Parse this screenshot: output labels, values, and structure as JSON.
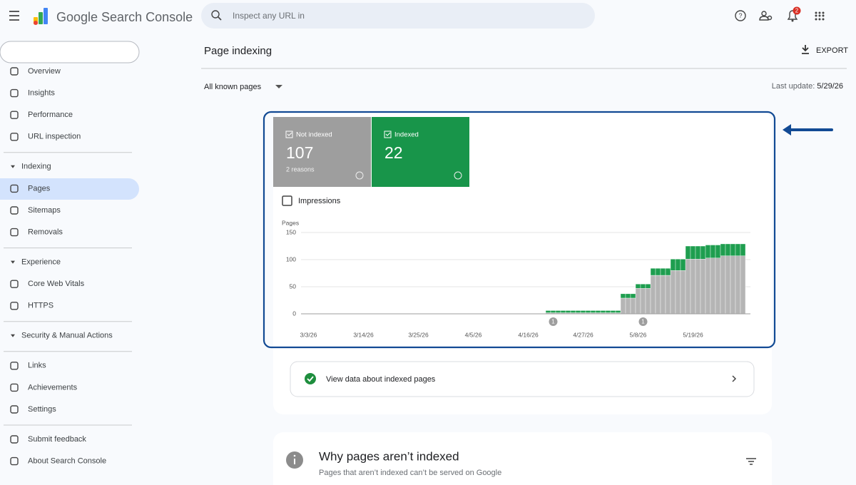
{
  "header": {
    "product": "Google Search Console",
    "search_placeholder": "Inspect any URL in",
    "notifications": 2
  },
  "sidebar": [
    {
      "items": [
        "Overview",
        "Insights",
        "Performance",
        "URL inspection"
      ]
    },
    {
      "heading": "Indexing",
      "items": [
        "Pages",
        "Sitemaps",
        "Removals"
      ]
    },
    {
      "heading": "Experience",
      "items": [
        "Core Web Vitals",
        "HTTPS"
      ]
    },
    {
      "heading": "Security & Manual Actions"
    },
    {
      "items": [
        "Links",
        "Achievements",
        "Settings"
      ]
    },
    {
      "items": [
        "Submit feedback",
        "About Search Console"
      ]
    }
  ],
  "page": {
    "title": "Page indexing",
    "export": "EXPORT",
    "filter": "All known pages",
    "last_update_label": "Last update:",
    "last_update": "5/29/26"
  },
  "summary": {
    "not_indexed": 107,
    "reasons": "2 reasons",
    "indexed": 22
  },
  "impressions": "Impressions",
  "chart_data": {
    "type": "bar",
    "stacked": true,
    "y_label": "Pages",
    "ylim": [
      0,
      150
    ],
    "yticks": [
      0,
      50,
      100,
      150
    ],
    "grid": true,
    "categories": [
      null,
      "3/3/26",
      null,
      null,
      null,
      null,
      null,
      null,
      null,
      null,
      null,
      null,
      "3/14/26",
      null,
      null,
      null,
      null,
      null,
      null,
      null,
      null,
      null,
      null,
      "3/25/26",
      null,
      null,
      null,
      null,
      null,
      null,
      null,
      null,
      null,
      null,
      "4/5/26",
      null,
      null,
      null,
      null,
      null,
      null,
      null,
      null,
      null,
      null,
      "4/16/26",
      null,
      null,
      null,
      null,
      null,
      null,
      null,
      null,
      null,
      null,
      "4/27/26",
      null,
      null,
      null,
      null,
      null,
      null,
      null,
      null,
      null,
      null,
      "5/8/26",
      null,
      null,
      null,
      null,
      null,
      null,
      null,
      null,
      null,
      null,
      "5/19/26",
      null,
      null,
      null,
      null,
      null,
      null,
      null,
      null,
      null,
      null
    ],
    "markers": [
      null,
      null,
      null,
      null,
      null,
      null,
      null,
      null,
      null,
      null,
      null,
      null,
      null,
      null,
      null,
      null,
      null,
      null,
      null,
      null,
      null,
      null,
      null,
      null,
      null,
      null,
      null,
      null,
      null,
      null,
      null,
      null,
      null,
      null,
      null,
      null,
      null,
      null,
      null,
      null,
      null,
      null,
      null,
      null,
      null,
      null,
      null,
      null,
      null,
      null,
      1,
      null,
      null,
      null,
      null,
      null,
      null,
      null,
      null,
      null,
      null,
      null,
      null,
      null,
      null,
      null,
      null,
      null,
      1,
      null,
      null,
      null,
      null,
      null,
      null,
      null,
      null,
      null,
      null,
      null,
      null,
      null,
      null,
      null,
      null,
      null,
      null,
      null,
      null
    ],
    "series": [
      {
        "name": "Not indexed",
        "color": "#b5b5b5",
        "values": [
          0,
          0,
          0,
          0,
          0,
          0,
          0,
          0,
          0,
          0,
          0,
          0,
          0,
          0,
          0,
          0,
          0,
          0,
          0,
          0,
          0,
          0,
          0,
          0,
          0,
          0,
          0,
          0,
          0,
          0,
          0,
          0,
          0,
          0,
          0,
          0,
          0,
          0,
          0,
          0,
          0,
          0,
          0,
          0,
          0,
          0,
          0,
          0,
          0,
          2,
          2,
          2,
          2,
          2,
          2,
          2,
          2,
          2,
          2,
          2,
          2,
          2,
          2,
          2,
          29,
          29,
          29,
          47,
          47,
          47,
          71,
          71,
          71,
          71,
          80,
          80,
          80,
          101,
          101,
          101,
          101,
          103,
          103,
          103,
          107,
          107,
          107,
          107,
          107
        ]
      },
      {
        "name": "Indexed",
        "color": "#1e9e4f",
        "values": [
          0,
          0,
          0,
          0,
          0,
          0,
          0,
          0,
          0,
          0,
          0,
          0,
          0,
          0,
          0,
          0,
          0,
          0,
          0,
          0,
          0,
          0,
          0,
          0,
          0,
          0,
          0,
          0,
          0,
          0,
          0,
          0,
          0,
          0,
          0,
          0,
          0,
          0,
          0,
          0,
          0,
          0,
          0,
          0,
          0,
          0,
          0,
          0,
          0,
          4,
          4,
          4,
          4,
          4,
          4,
          4,
          4,
          4,
          4,
          4,
          4,
          4,
          4,
          4,
          8,
          8,
          8,
          8,
          8,
          8,
          13,
          13,
          13,
          13,
          21,
          21,
          21,
          24,
          24,
          24,
          24,
          24,
          24,
          24,
          22,
          22,
          22,
          22,
          22
        ]
      }
    ]
  },
  "indexed_link": "View data about indexed pages",
  "why": {
    "title": "Why pages aren’t indexed",
    "subtitle": "Pages that aren’t indexed can’t be served on Google"
  }
}
